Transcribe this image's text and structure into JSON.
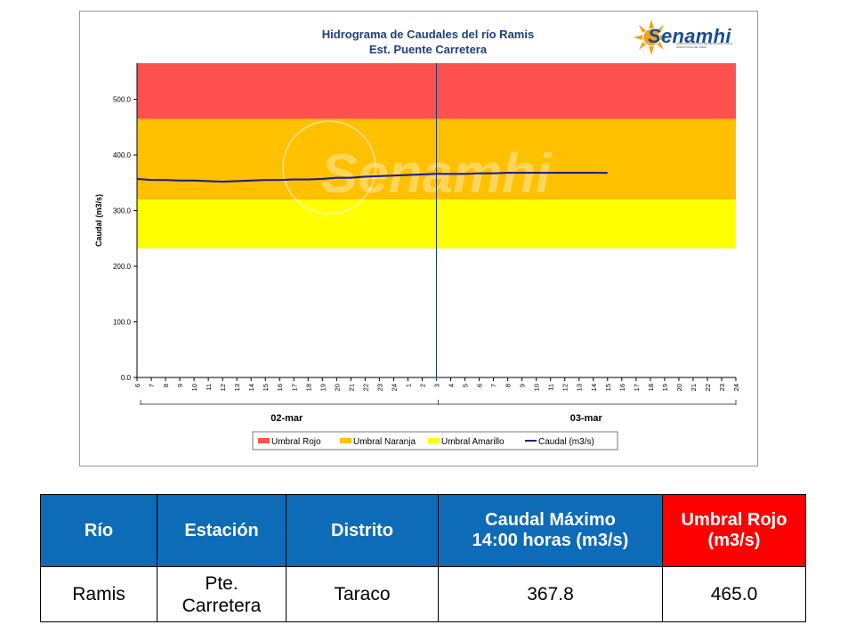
{
  "chart_data": {
    "type": "line",
    "title": "Hidrograma de Caudales del río Ramis",
    "subtitle": "Est. Puente Carretera",
    "ylabel": "Caudal (m3/s)",
    "xlabel": "",
    "ylim": [
      0,
      565
    ],
    "y_ticks": [
      "0.0",
      "100.0",
      "200.0",
      "300.0",
      "400.0",
      "500.0"
    ],
    "x_tick_labels": [
      "6",
      "7",
      "8",
      "9",
      "10",
      "11",
      "12",
      "13",
      "14",
      "15",
      "16",
      "17",
      "18",
      "19",
      "20",
      "21",
      "22",
      "23",
      "24",
      "1",
      "2",
      "3",
      "4",
      "5",
      "6",
      "7",
      "8",
      "9",
      "10",
      "11",
      "12",
      "13",
      "14",
      "15",
      "16",
      "17",
      "18",
      "19",
      "20",
      "21",
      "22",
      "23",
      "24"
    ],
    "day_labels": [
      "02-mar",
      "03-mar"
    ],
    "bands": [
      {
        "name": "Umbral Rojo",
        "from": 465,
        "to": 565,
        "color": "#ff5050"
      },
      {
        "name": "Umbral Naranja",
        "from": 320,
        "to": 465,
        "color": "#ffc000"
      },
      {
        "name": "Umbral Amarillo",
        "from": 232,
        "to": 320,
        "color": "#ffff00"
      }
    ],
    "series": [
      {
        "name": "Caudal (m3/s)",
        "color": "#1f1f8f",
        "values": [
          357,
          355,
          355,
          354,
          354,
          353,
          352,
          353,
          354,
          355,
          355,
          356,
          356,
          357,
          359,
          359,
          361,
          362,
          363,
          364,
          365,
          366,
          366,
          366,
          367,
          367,
          368,
          368,
          368,
          368,
          368,
          368,
          368,
          367.8
        ]
      }
    ],
    "legend_position": "bottom",
    "grid": false,
    "watermark": "Senamhi"
  },
  "logo": {
    "text": "Senamhi",
    "subtext": "SERVICIO NACIONAL DE METEOROLOGÍA E HIDROLOGÍA DEL PERÚ"
  },
  "table": {
    "headers": [
      "Río",
      "Estación",
      "Distrito",
      "Caudal Máximo",
      "14:00 horas (m3/s)",
      "Umbral Rojo",
      "(m3/s)"
    ],
    "row": [
      "Ramis",
      "Pte.",
      "Carretera",
      "Taraco",
      "367.8",
      "465.0"
    ]
  },
  "colors": {
    "header_blue": "#0d6bb8",
    "header_red": "#ff0000",
    "series_line": "#1f1f8f"
  }
}
